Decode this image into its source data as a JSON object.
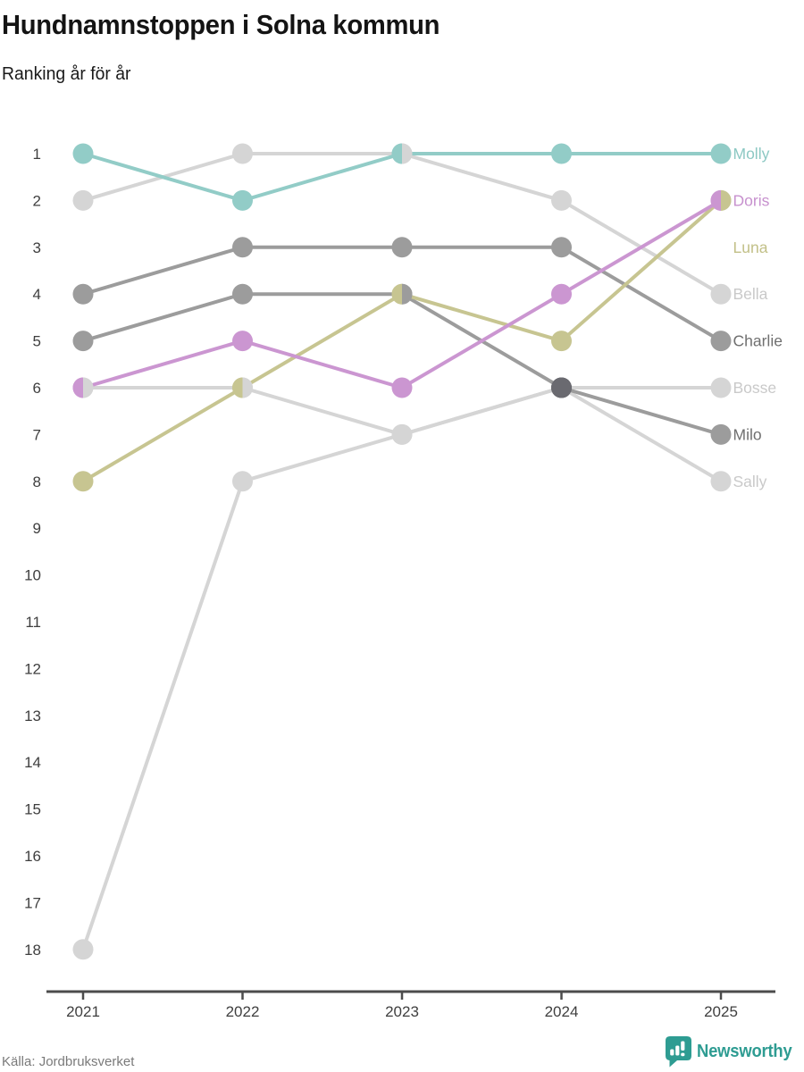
{
  "header": {
    "title": "Hundnamnstoppen i Solna kommun",
    "subtitle": "Ranking år för år"
  },
  "footer": {
    "source": "Källa: Jordbruksverket",
    "brand": "Newsworthy",
    "brand_color": "#2e9c92",
    "brand_icon": "bar-chart-pin-icon"
  },
  "chart_data": {
    "type": "line",
    "variant": "bump-ranking",
    "title": "Hundnamnstoppen i Solna kommun",
    "subtitle": "Ranking år för år",
    "x": [
      2021,
      2022,
      2023,
      2024,
      2025
    ],
    "xticks": [
      "2021",
      "2022",
      "2023",
      "2024",
      "2025"
    ],
    "yticks": [
      1,
      2,
      3,
      4,
      5,
      6,
      7,
      8,
      9,
      10,
      11,
      12,
      13,
      14,
      15,
      16,
      17,
      18
    ],
    "y_axis_inverted": true,
    "ylim": [
      1,
      18
    ],
    "grid": false,
    "legend_position": "right-of-last-point",
    "series": [
      {
        "name": "Molly",
        "color": "#92ccc7",
        "label_color": "#8cc8c3",
        "values": [
          1,
          2,
          1,
          1,
          1
        ],
        "label_rank": 1
      },
      {
        "name": "Doris",
        "color": "#cb96d1",
        "label_color": "#c791ce",
        "values": [
          6,
          5,
          6,
          4,
          2
        ],
        "label_rank": 2
      },
      {
        "name": "Luna",
        "color": "#c7c591",
        "label_color": "#c2c088",
        "values": [
          8,
          6,
          4,
          5,
          2
        ],
        "label_rank": 3
      },
      {
        "name": "Bella",
        "color": "#d5d5d5",
        "label_color": "#c9c9c9",
        "values": [
          2,
          1,
          1,
          2,
          4
        ],
        "label_rank": 4
      },
      {
        "name": "Charlie",
        "color": "#9c9c9c",
        "label_color": "#6f6f6f",
        "values": [
          4,
          3,
          3,
          3,
          5
        ],
        "label_rank": 5
      },
      {
        "name": "Bosse",
        "color": "#d5d5d5",
        "label_color": "#c9c9c9",
        "values": [
          6,
          6,
          7,
          6,
          6
        ],
        "label_rank": 6
      },
      {
        "name": "Milo",
        "color": "#9c9c9c",
        "label_color": "#6f6f6f",
        "values": [
          5,
          4,
          4,
          6,
          7
        ],
        "label_rank": 7
      },
      {
        "name": "Sally",
        "color": "#d5d5d5",
        "label_color": "#c9c9c9",
        "values": [
          18,
          8,
          7,
          6,
          8
        ],
        "label_rank": 8
      }
    ],
    "shared_rank_dots": [
      {
        "year": 2021,
        "rank": 6,
        "names": [
          "Doris",
          "Bosse"
        ],
        "colors": [
          "#cb96d1",
          "#d5d5d5"
        ]
      },
      {
        "year": 2022,
        "rank": 6,
        "names": [
          "Luna",
          "Bosse"
        ],
        "colors": [
          "#c7c591",
          "#d5d5d5"
        ]
      },
      {
        "year": 2023,
        "rank": 1,
        "names": [
          "Molly",
          "Bella"
        ],
        "colors": [
          "#92ccc7",
          "#d5d5d5"
        ]
      },
      {
        "year": 2023,
        "rank": 4,
        "names": [
          "Luna",
          "Milo"
        ],
        "colors": [
          "#c7c591",
          "#9c9c9c"
        ]
      },
      {
        "year": 2023,
        "rank": 7,
        "names": [
          "Bosse",
          "Sally"
        ],
        "colors": [
          "#d5d5d5",
          "#d5d5d5"
        ]
      },
      {
        "year": 2024,
        "rank": 6,
        "names": [
          "Milo",
          "Bosse",
          "Sally"
        ],
        "colors": [
          "#6a6a70",
          "#6a6a70"
        ]
      },
      {
        "year": 2025,
        "rank": 2,
        "names": [
          "Doris",
          "Luna"
        ],
        "colors": [
          "#cb96d1",
          "#c7c591"
        ]
      }
    ]
  }
}
